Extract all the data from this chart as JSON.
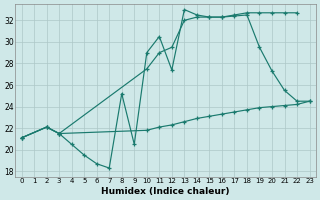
{
  "xlabel": "Humidex (Indice chaleur)",
  "xlim": [
    -0.5,
    23.5
  ],
  "ylim": [
    17.5,
    33.5
  ],
  "xticks": [
    0,
    1,
    2,
    3,
    4,
    5,
    6,
    7,
    8,
    9,
    10,
    11,
    12,
    13,
    14,
    15,
    16,
    17,
    18,
    19,
    20,
    21,
    22,
    23
  ],
  "yticks": [
    18,
    20,
    22,
    24,
    26,
    28,
    30,
    32
  ],
  "bg_color": "#cfe8e8",
  "grid_color": "#adc8c8",
  "line_color": "#1a7a6e",
  "line1_x": [
    0,
    2,
    3,
    4,
    5,
    6,
    7,
    8,
    9,
    10,
    11,
    12,
    13,
    14,
    15,
    16,
    17,
    18,
    19,
    20,
    21,
    22
  ],
  "line1_y": [
    21.1,
    22.1,
    21.5,
    20.5,
    19.5,
    18.7,
    18.3,
    25.2,
    20.5,
    29.0,
    30.5,
    27.4,
    33.0,
    32.5,
    32.3,
    32.3,
    32.5,
    32.7,
    32.7,
    32.7,
    32.7,
    32.7
  ],
  "line2_x": [
    0,
    2,
    3,
    10,
    11,
    12,
    13,
    14,
    15,
    16,
    17,
    18,
    19,
    20,
    21,
    22,
    23
  ],
  "line2_y": [
    21.1,
    22.1,
    21.5,
    27.5,
    29.0,
    29.5,
    32.0,
    32.3,
    32.3,
    32.3,
    32.4,
    32.5,
    29.5,
    27.3,
    25.5,
    24.5,
    24.5
  ],
  "line3_x": [
    0,
    2,
    3,
    10,
    11,
    12,
    13,
    14,
    15,
    16,
    17,
    18,
    19,
    20,
    21,
    22,
    23
  ],
  "line3_y": [
    21.1,
    22.1,
    21.5,
    21.8,
    22.1,
    22.3,
    22.6,
    22.9,
    23.1,
    23.3,
    23.5,
    23.7,
    23.9,
    24.0,
    24.1,
    24.2,
    24.5
  ]
}
